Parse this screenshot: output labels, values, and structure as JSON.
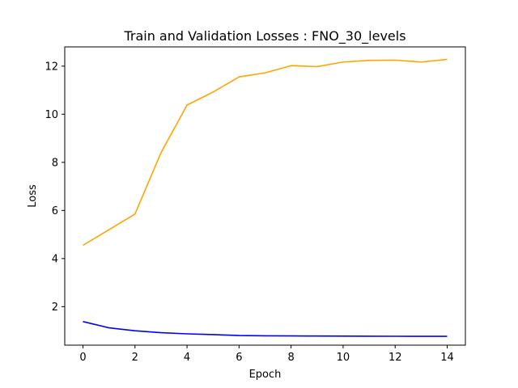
{
  "chart_data": {
    "type": "line",
    "title": "Train and Validation Losses : FNO_30_levels",
    "xlabel": "Epoch",
    "ylabel": "Loss",
    "xlim": [
      -0.7,
      14.7
    ],
    "ylim": [
      0.4,
      12.8
    ],
    "x_ticks": [
      0,
      2,
      4,
      6,
      8,
      10,
      12,
      14
    ],
    "y_ticks": [
      2,
      4,
      6,
      8,
      10,
      12
    ],
    "grid": false,
    "x": [
      0,
      1,
      2,
      3,
      4,
      5,
      6,
      7,
      8,
      9,
      10,
      11,
      12,
      13,
      14
    ],
    "series": [
      {
        "color": "#0000ff",
        "values": [
          1.38,
          1.12,
          1.0,
          0.92,
          0.87,
          0.84,
          0.8,
          0.79,
          0.785,
          0.78,
          0.775,
          0.772,
          0.77,
          0.768,
          0.767
        ]
      },
      {
        "color": "#ffa500",
        "values": [
          4.55,
          5.2,
          5.85,
          8.4,
          10.38,
          10.92,
          11.55,
          11.72,
          12.02,
          11.98,
          12.17,
          12.24,
          12.25,
          12.17,
          12.28
        ]
      }
    ]
  }
}
